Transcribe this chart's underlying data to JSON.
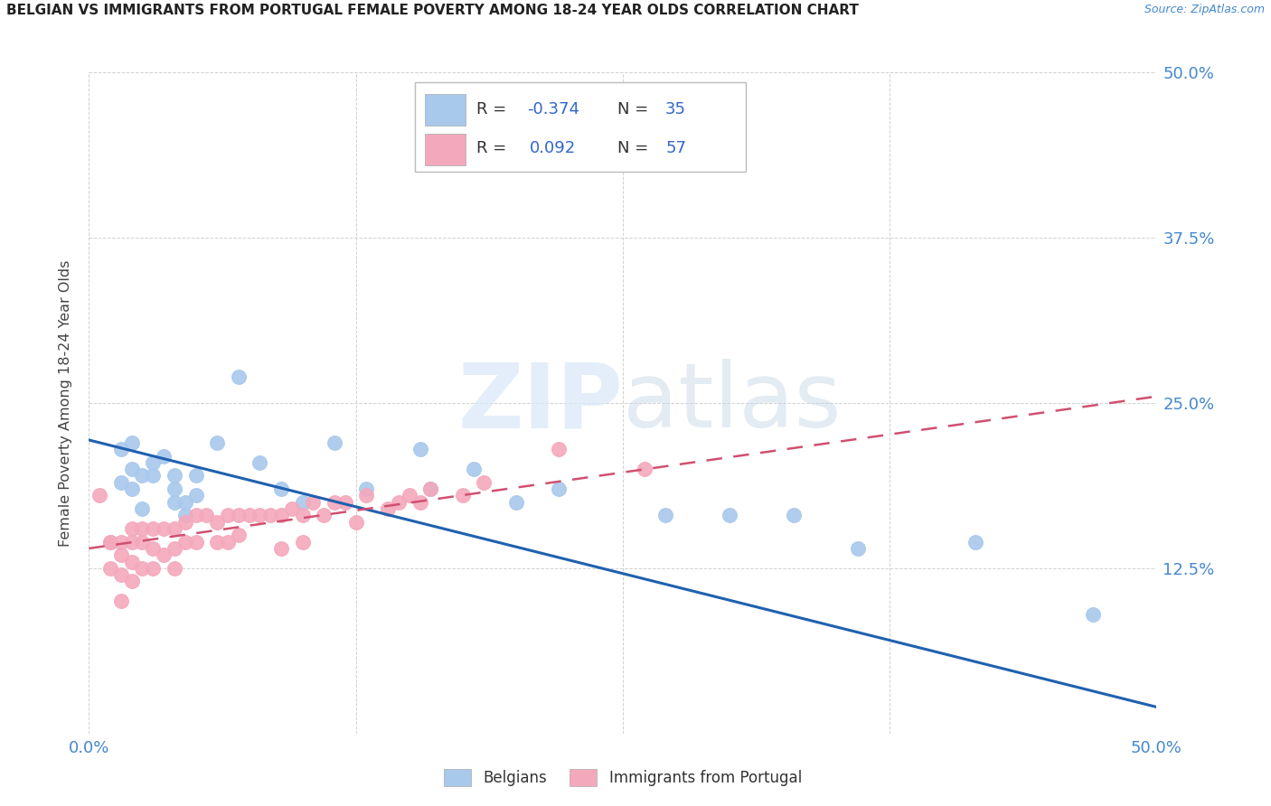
{
  "title": "BELGIAN VS IMMIGRANTS FROM PORTUGAL FEMALE POVERTY AMONG 18-24 YEAR OLDS CORRELATION CHART",
  "source": "Source: ZipAtlas.com",
  "ylabel": "Female Poverty Among 18-24 Year Olds",
  "xlim": [
    0,
    0.5
  ],
  "ylim": [
    0,
    0.5
  ],
  "belgian_R": "-0.374",
  "belgian_N": "35",
  "portugal_R": "0.092",
  "portugal_N": "57",
  "belgian_color": "#A8C8EC",
  "portugal_color": "#F4A8BC",
  "belgian_line_color": "#2060B0",
  "portugal_line_color": "#D05070",
  "belgians_x": [
    0.015,
    0.015,
    0.02,
    0.02,
    0.02,
    0.025,
    0.025,
    0.03,
    0.03,
    0.035,
    0.04,
    0.04,
    0.04,
    0.045,
    0.045,
    0.05,
    0.05,
    0.06,
    0.07,
    0.08,
    0.09,
    0.1,
    0.115,
    0.13,
    0.155,
    0.16,
    0.18,
    0.2,
    0.22,
    0.27,
    0.3,
    0.33,
    0.36,
    0.415,
    0.47
  ],
  "belgians_y": [
    0.215,
    0.19,
    0.22,
    0.2,
    0.185,
    0.195,
    0.17,
    0.205,
    0.195,
    0.21,
    0.195,
    0.175,
    0.185,
    0.165,
    0.175,
    0.18,
    0.195,
    0.22,
    0.27,
    0.205,
    0.185,
    0.175,
    0.22,
    0.185,
    0.215,
    0.185,
    0.2,
    0.175,
    0.185,
    0.165,
    0.165,
    0.165,
    0.14,
    0.145,
    0.09
  ],
  "portugal_x": [
    0.005,
    0.01,
    0.01,
    0.01,
    0.015,
    0.015,
    0.015,
    0.015,
    0.02,
    0.02,
    0.02,
    0.02,
    0.025,
    0.025,
    0.025,
    0.03,
    0.03,
    0.03,
    0.035,
    0.035,
    0.04,
    0.04,
    0.04,
    0.045,
    0.045,
    0.05,
    0.05,
    0.055,
    0.06,
    0.06,
    0.065,
    0.065,
    0.07,
    0.07,
    0.075,
    0.08,
    0.085,
    0.09,
    0.09,
    0.095,
    0.1,
    0.1,
    0.105,
    0.11,
    0.115,
    0.12,
    0.125,
    0.13,
    0.14,
    0.145,
    0.15,
    0.155,
    0.16,
    0.175,
    0.185,
    0.22,
    0.26
  ],
  "portugal_y": [
    0.18,
    0.145,
    0.145,
    0.125,
    0.145,
    0.135,
    0.12,
    0.1,
    0.155,
    0.145,
    0.13,
    0.115,
    0.155,
    0.145,
    0.125,
    0.155,
    0.14,
    0.125,
    0.155,
    0.135,
    0.155,
    0.14,
    0.125,
    0.16,
    0.145,
    0.165,
    0.145,
    0.165,
    0.16,
    0.145,
    0.165,
    0.145,
    0.165,
    0.15,
    0.165,
    0.165,
    0.165,
    0.165,
    0.14,
    0.17,
    0.165,
    0.145,
    0.175,
    0.165,
    0.175,
    0.175,
    0.16,
    0.18,
    0.17,
    0.175,
    0.18,
    0.175,
    0.185,
    0.18,
    0.19,
    0.215,
    0.2
  ],
  "belgian_line_y0": 0.222,
  "belgian_line_y1": 0.02,
  "portugal_line_y0": 0.14,
  "portugal_line_y1": 0.255
}
